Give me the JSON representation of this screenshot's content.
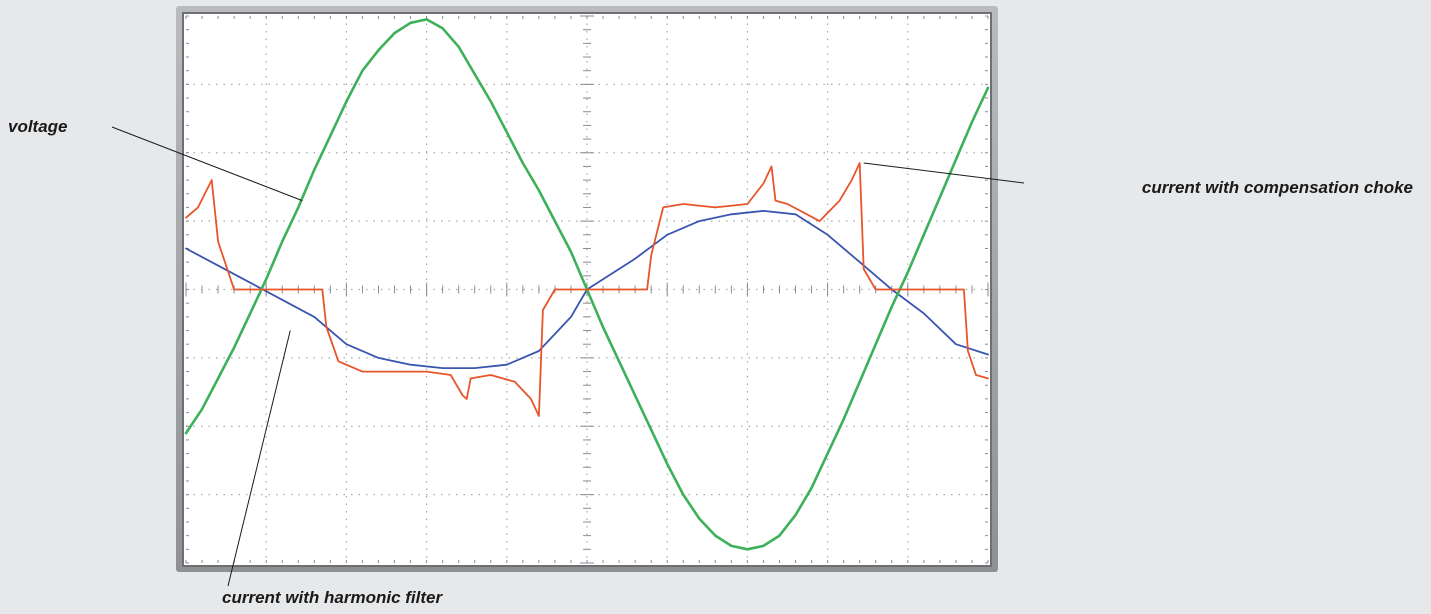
{
  "chart_data": {
    "type": "line",
    "title": "",
    "xlabel": "",
    "ylabel": "",
    "grid": true,
    "divisions": {
      "x": 10,
      "y": 8
    },
    "xlim": [
      0,
      10
    ],
    "ylim": [
      -4,
      4
    ],
    "colors": {
      "voltage": "#3db05a",
      "current_choke": "#e8552a",
      "current_filter": "#3a55b0",
      "frame": "#6d6f73",
      "screen": "#ffffff",
      "grid": "#a7a9ad"
    },
    "series": [
      {
        "key": "voltage",
        "name": "voltage",
        "x": [
          0,
          0.2,
          0.4,
          0.6,
          0.8,
          1,
          1.2,
          1.4,
          1.6,
          1.8,
          2,
          2.2,
          2.4,
          2.6,
          2.8,
          3,
          3.2,
          3.4,
          3.6,
          3.8,
          4,
          4.2,
          4.4,
          4.6,
          4.8,
          5,
          5.2,
          5.4,
          5.6,
          5.8,
          6,
          6.2,
          6.4,
          6.6,
          6.8,
          7,
          7.2,
          7.4,
          7.6,
          7.8,
          8,
          8.2,
          8.4,
          8.6,
          8.8,
          9,
          9.2,
          9.4,
          9.6,
          9.8,
          10
        ],
        "y": [
          -2.1,
          -1.75,
          -1.3,
          -0.85,
          -0.35,
          0.15,
          0.7,
          1.2,
          1.75,
          2.25,
          2.75,
          3.2,
          3.5,
          3.75,
          3.9,
          3.95,
          3.82,
          3.55,
          3.15,
          2.75,
          2.3,
          1.85,
          1.45,
          1.0,
          0.55,
          0.0,
          -0.55,
          -1.05,
          -1.55,
          -2.05,
          -2.55,
          -3.0,
          -3.35,
          -3.6,
          -3.75,
          -3.8,
          -3.75,
          -3.6,
          -3.3,
          -2.9,
          -2.4,
          -1.9,
          -1.35,
          -0.8,
          -0.25,
          0.25,
          0.8,
          1.35,
          1.9,
          2.45,
          2.95
        ]
      },
      {
        "key": "current_choke",
        "name": "current with compensation choke",
        "x": [
          0,
          0.15,
          0.32,
          0.4,
          0.6,
          0.8,
          1,
          1.2,
          1.4,
          1.7,
          1.75,
          1.9,
          2.2,
          2.6,
          3,
          3.3,
          3.45,
          3.5,
          3.55,
          3.8,
          4.1,
          4.3,
          4.4,
          4.45,
          4.6,
          4.8,
          5,
          5.2,
          5.4,
          5.6,
          5.75,
          5.8,
          5.95,
          6.2,
          6.6,
          7,
          7.2,
          7.3,
          7.35,
          7.5,
          7.9,
          8.15,
          8.3,
          8.4,
          8.45,
          8.6,
          8.8,
          9,
          9.2,
          9.4,
          9.7,
          9.75,
          9.85,
          10
        ],
        "y": [
          1.05,
          1.2,
          1.6,
          0.7,
          0.0,
          0.0,
          0.0,
          0.0,
          0.0,
          0.0,
          -0.55,
          -1.05,
          -1.2,
          -1.2,
          -1.2,
          -1.25,
          -1.55,
          -1.6,
          -1.3,
          -1.25,
          -1.35,
          -1.6,
          -1.85,
          -0.3,
          0.0,
          0.0,
          0.0,
          0.0,
          0.0,
          0.0,
          0.0,
          0.5,
          1.2,
          1.25,
          1.2,
          1.25,
          1.55,
          1.8,
          1.3,
          1.25,
          1.0,
          1.3,
          1.6,
          1.85,
          0.3,
          0.0,
          0.0,
          0.0,
          0.0,
          0.0,
          0.0,
          -0.9,
          -1.25,
          -1.3
        ]
      },
      {
        "key": "current_filter",
        "name": "current with harmonic filter",
        "x": [
          0,
          0.4,
          0.8,
          1.2,
          1.6,
          2.0,
          2.4,
          2.8,
          3.2,
          3.6,
          4.0,
          4.4,
          4.8,
          5.0,
          5.2,
          5.6,
          6.0,
          6.4,
          6.8,
          7.2,
          7.6,
          8.0,
          8.4,
          8.8,
          9.2,
          9.6,
          10
        ],
        "y": [
          0.6,
          0.35,
          0.1,
          -0.15,
          -0.4,
          -0.8,
          -1.0,
          -1.1,
          -1.15,
          -1.15,
          -1.1,
          -0.9,
          -0.4,
          0.0,
          0.15,
          0.45,
          0.8,
          1.0,
          1.1,
          1.15,
          1.1,
          0.8,
          0.4,
          0.0,
          -0.35,
          -0.8,
          -0.95
        ]
      }
    ],
    "annotations": [
      {
        "key": "voltage",
        "text": "voltage"
      },
      {
        "key": "current_choke",
        "text": "current with compensation choke"
      },
      {
        "key": "current_filter",
        "text": "current with harmonic filter"
      }
    ]
  }
}
